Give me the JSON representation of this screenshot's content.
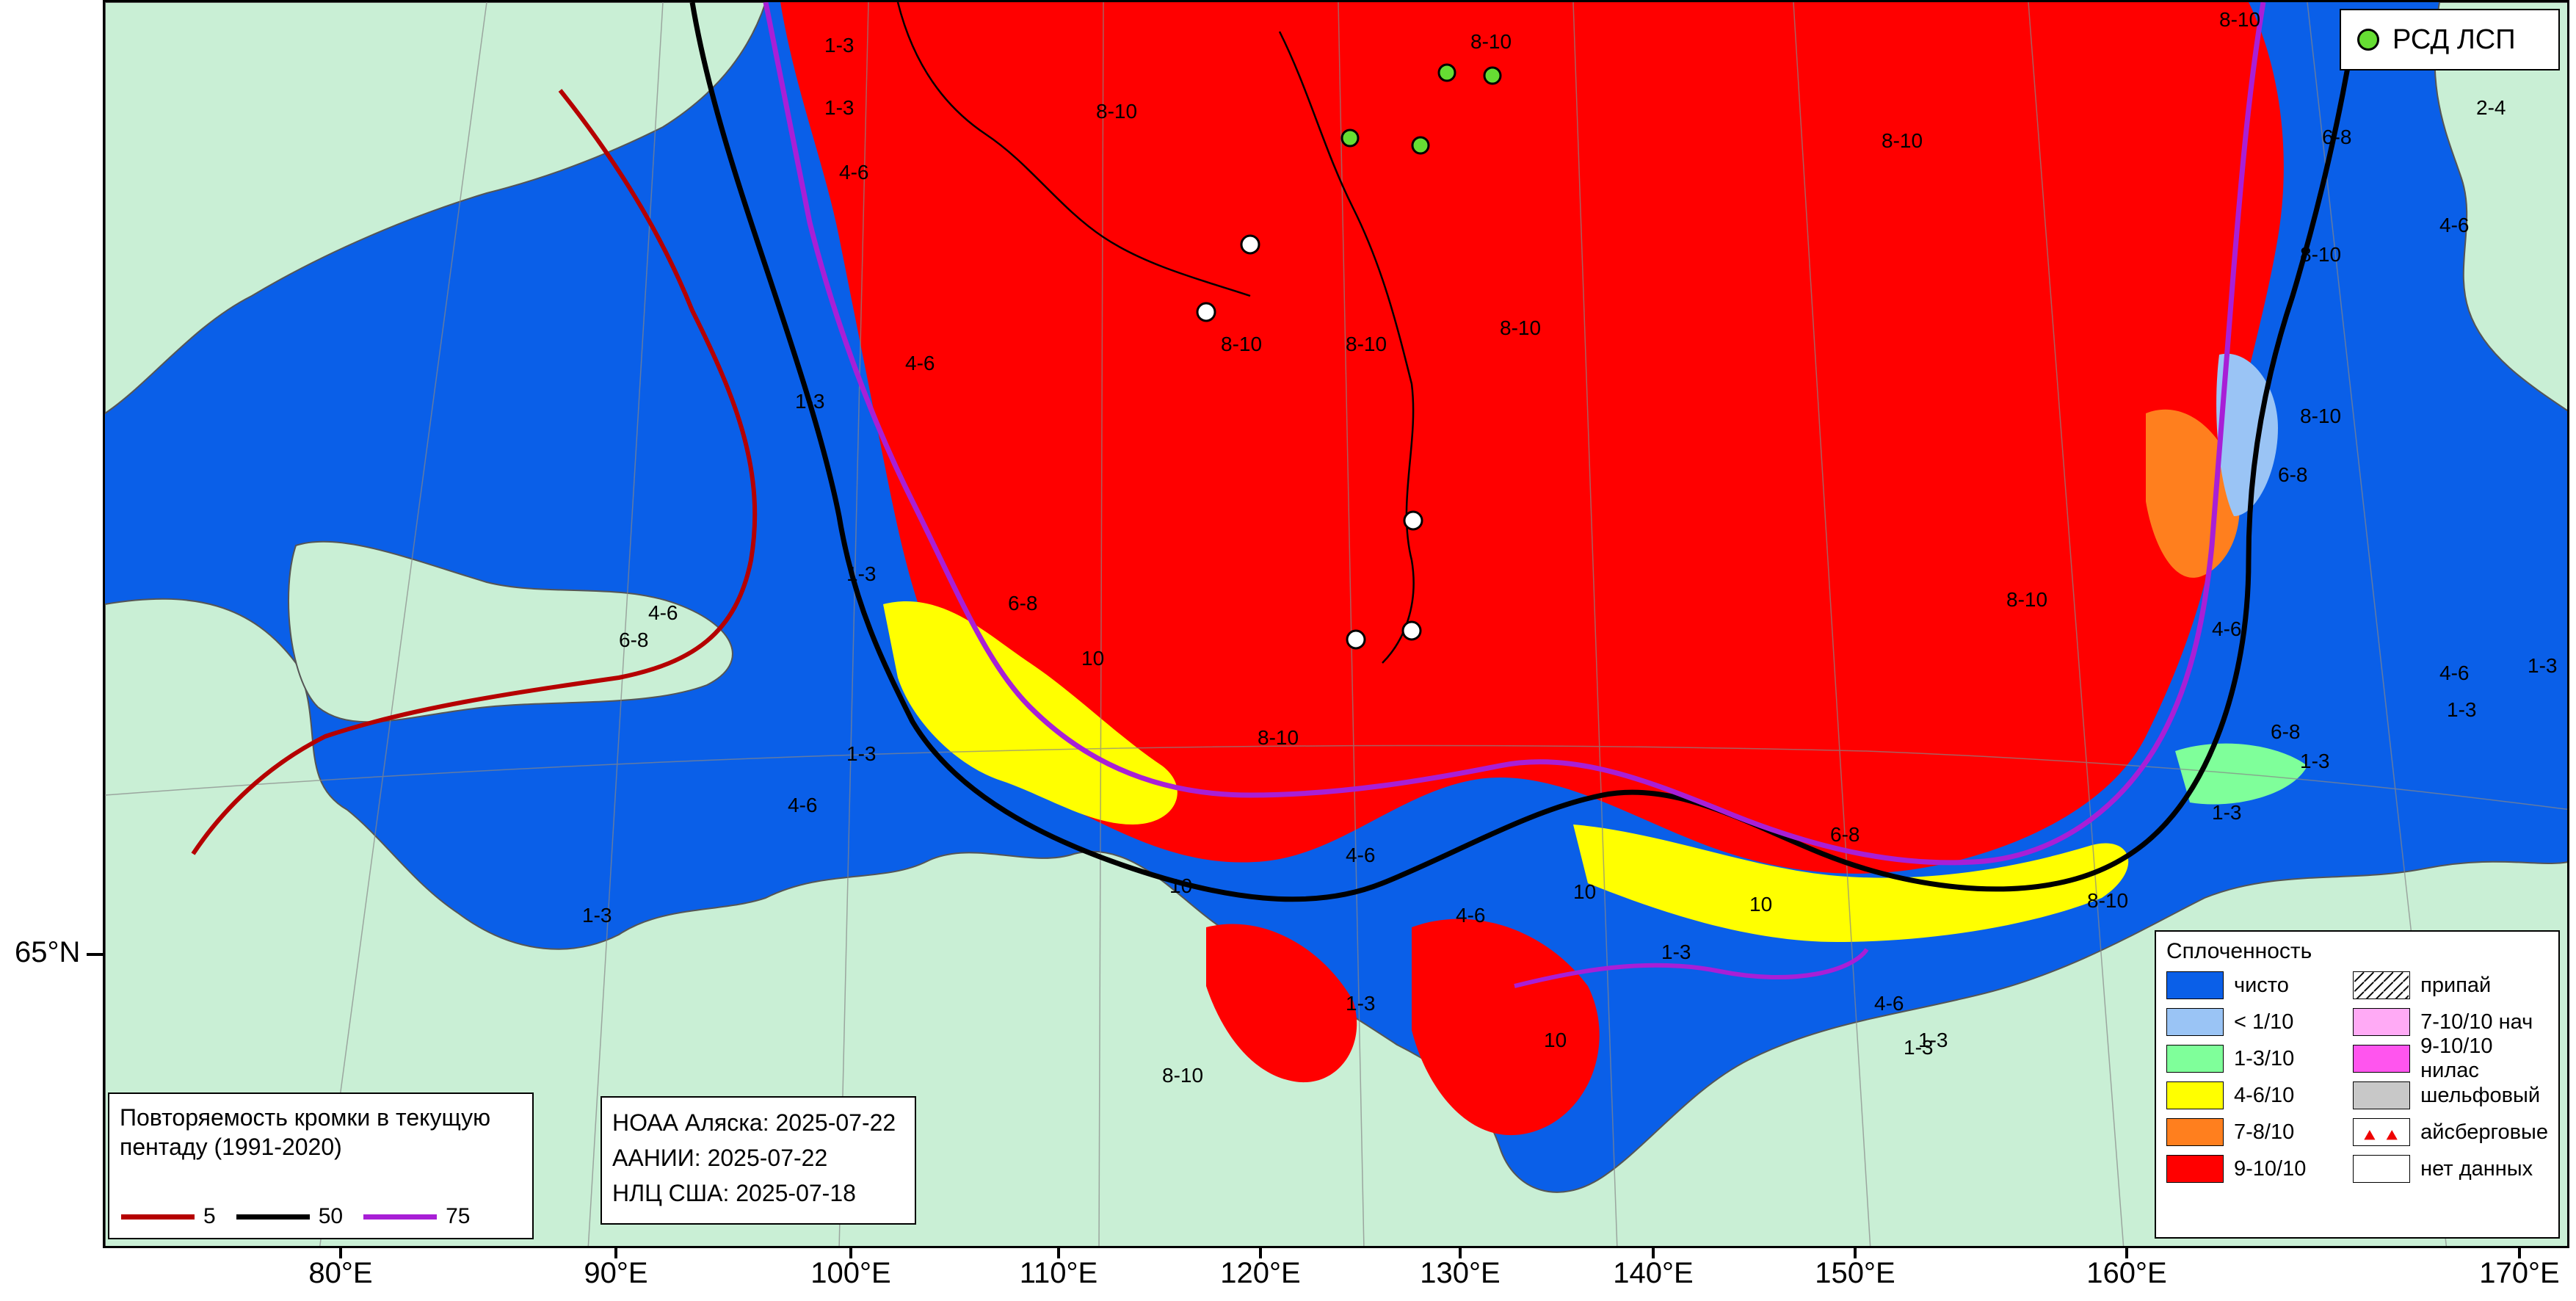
{
  "colors": {
    "water": "#0a5fe8",
    "land": "#c9efd5",
    "ice_9_10": "#ff0000",
    "ice_7_8": "#ff7f1e",
    "ice_4_6": "#ffff00",
    "ice_1_3": "#7fff9a",
    "ice_lt1": "#9ac4f5",
    "line_5": "#b50000",
    "line_50": "#000000",
    "line_75": "#a81fd6",
    "rsd_point": "#66dd33"
  },
  "axes": {
    "longitude_labels": [
      "80°E",
      "90°E",
      "100°E",
      "110°E",
      "120°E",
      "130°E",
      "140°E",
      "150°E",
      "160°E",
      "170°E"
    ],
    "latitude_label": "65°N"
  },
  "zone_labels": [
    "8-10",
    "8-10",
    "8-10",
    "8-10",
    "8-10",
    "8-10",
    "8-10",
    "8-10",
    "8-10",
    "1-3",
    "1-3",
    "4-6",
    "4-6",
    "1-3",
    "6-8",
    "10",
    "4-6",
    "10",
    "1-3",
    "1-3",
    "4-6",
    "1-3",
    "8-10",
    "1-3",
    "6-8",
    "4-6",
    "8-10",
    "1-3",
    "6-8",
    "4-6",
    "10",
    "1-3",
    "4-6",
    "6-8",
    "10",
    "10",
    "1-3",
    "1-3",
    "6-8",
    "8-10",
    "1-3",
    "4-6",
    "2-4",
    "4-6",
    "6-8",
    "4-6",
    "1-3",
    "8-10",
    "1-3"
  ],
  "rsd_box": {
    "label": "РСД ЛСП",
    "icon": "circle-marker-icon"
  },
  "dates_box": {
    "line1": "НОАА Аляска: 2025-07-22",
    "line2": "ААНИИ: 2025-07-22",
    "line3": "НЛЦ США: 2025-07-18"
  },
  "freq_legend": {
    "title": "Повторяемость кромки в текущую пентаду (1991-2020)",
    "items": [
      {
        "label": "5",
        "color": "#b50000"
      },
      {
        "label": "50",
        "color": "#000000"
      },
      {
        "label": "75",
        "color": "#a81fd6"
      }
    ]
  },
  "conc_legend": {
    "title": "Сплоченность",
    "items": [
      {
        "label": "чисто",
        "color": "#0a5fe8"
      },
      {
        "label": "припай",
        "color": "hatch"
      },
      {
        "label": "< 1/10",
        "color": "#9ac4f5"
      },
      {
        "label": "7-10/10 нач",
        "color": "#ffaaf5"
      },
      {
        "label": "1-3/10",
        "color": "#7fff9a"
      },
      {
        "label": "9-10/10 нилас",
        "color": "#ff55ee"
      },
      {
        "label": "4-6/10",
        "color": "#ffff00"
      },
      {
        "label": "шельфовый",
        "color": "#c8c8c8"
      },
      {
        "label": "7-8/10",
        "color": "#ff7f1e"
      },
      {
        "label": "айсберговые",
        "color": "icebergs"
      },
      {
        "label": "9-10/10",
        "color": "#ff0000"
      },
      {
        "label": "нет данных",
        "color": "#ffffff"
      }
    ]
  }
}
